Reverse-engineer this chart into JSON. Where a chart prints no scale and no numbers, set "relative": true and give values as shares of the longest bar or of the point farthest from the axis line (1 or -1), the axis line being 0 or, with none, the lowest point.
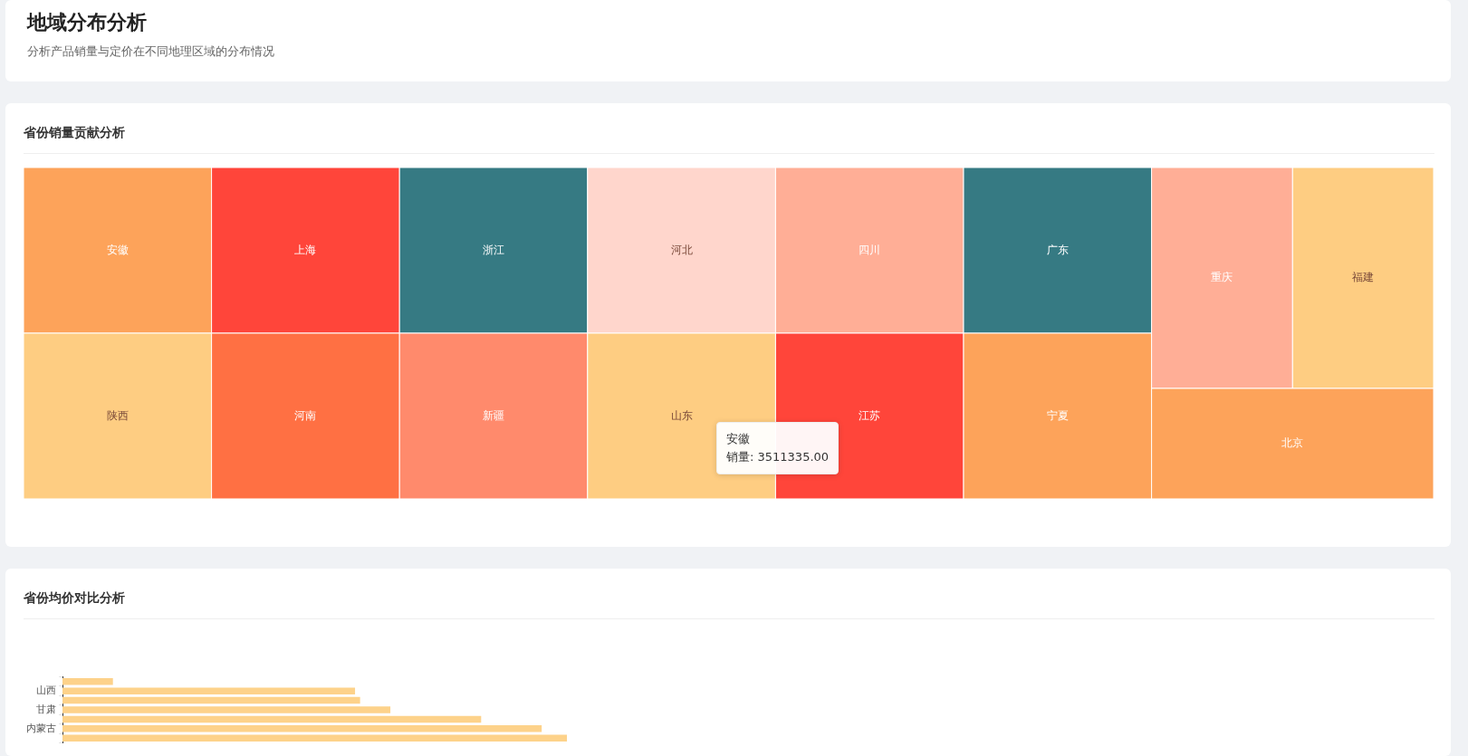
{
  "chart_data": [
    {
      "type": "other",
      "title": "地域分布分析",
      "subtitle": "分析产品销量与定价在不同地理区域的分布情况"
    },
    {
      "type": "other",
      "title": "省份销量贡献分析",
      "categories": [
        "安徽",
        "陕西",
        "上海",
        "河南",
        "浙江",
        "新疆",
        "河北",
        "山东",
        "四川",
        "江苏",
        "广东",
        "宁夏",
        "重庆",
        "福建",
        "北京"
      ],
      "colors": [
        "#fda35a",
        "#fecd82",
        "#ff453a",
        "#ff7043",
        "#367a83",
        "#ff8a6c",
        "#ffd6cc",
        "#fecd82",
        "#ffae96",
        "#ff453a",
        "#367a83",
        "#fda35a",
        "#ffae96",
        "#fecd82",
        "#fda35a"
      ],
      "annotations": [
        "安徽",
        "销量: 3511335.00"
      ]
    },
    {
      "type": "bar",
      "title": "省份均价对比分析",
      "orientation": "horizontal",
      "relative": true,
      "categories": [
        null,
        "山西",
        null,
        "甘肃",
        null,
        "内蒙古",
        null
      ],
      "values": [
        0.1,
        0.58,
        0.59,
        0.65,
        0.83,
        0.95,
        1
      ],
      "color": "#fdd28a"
    }
  ]
}
